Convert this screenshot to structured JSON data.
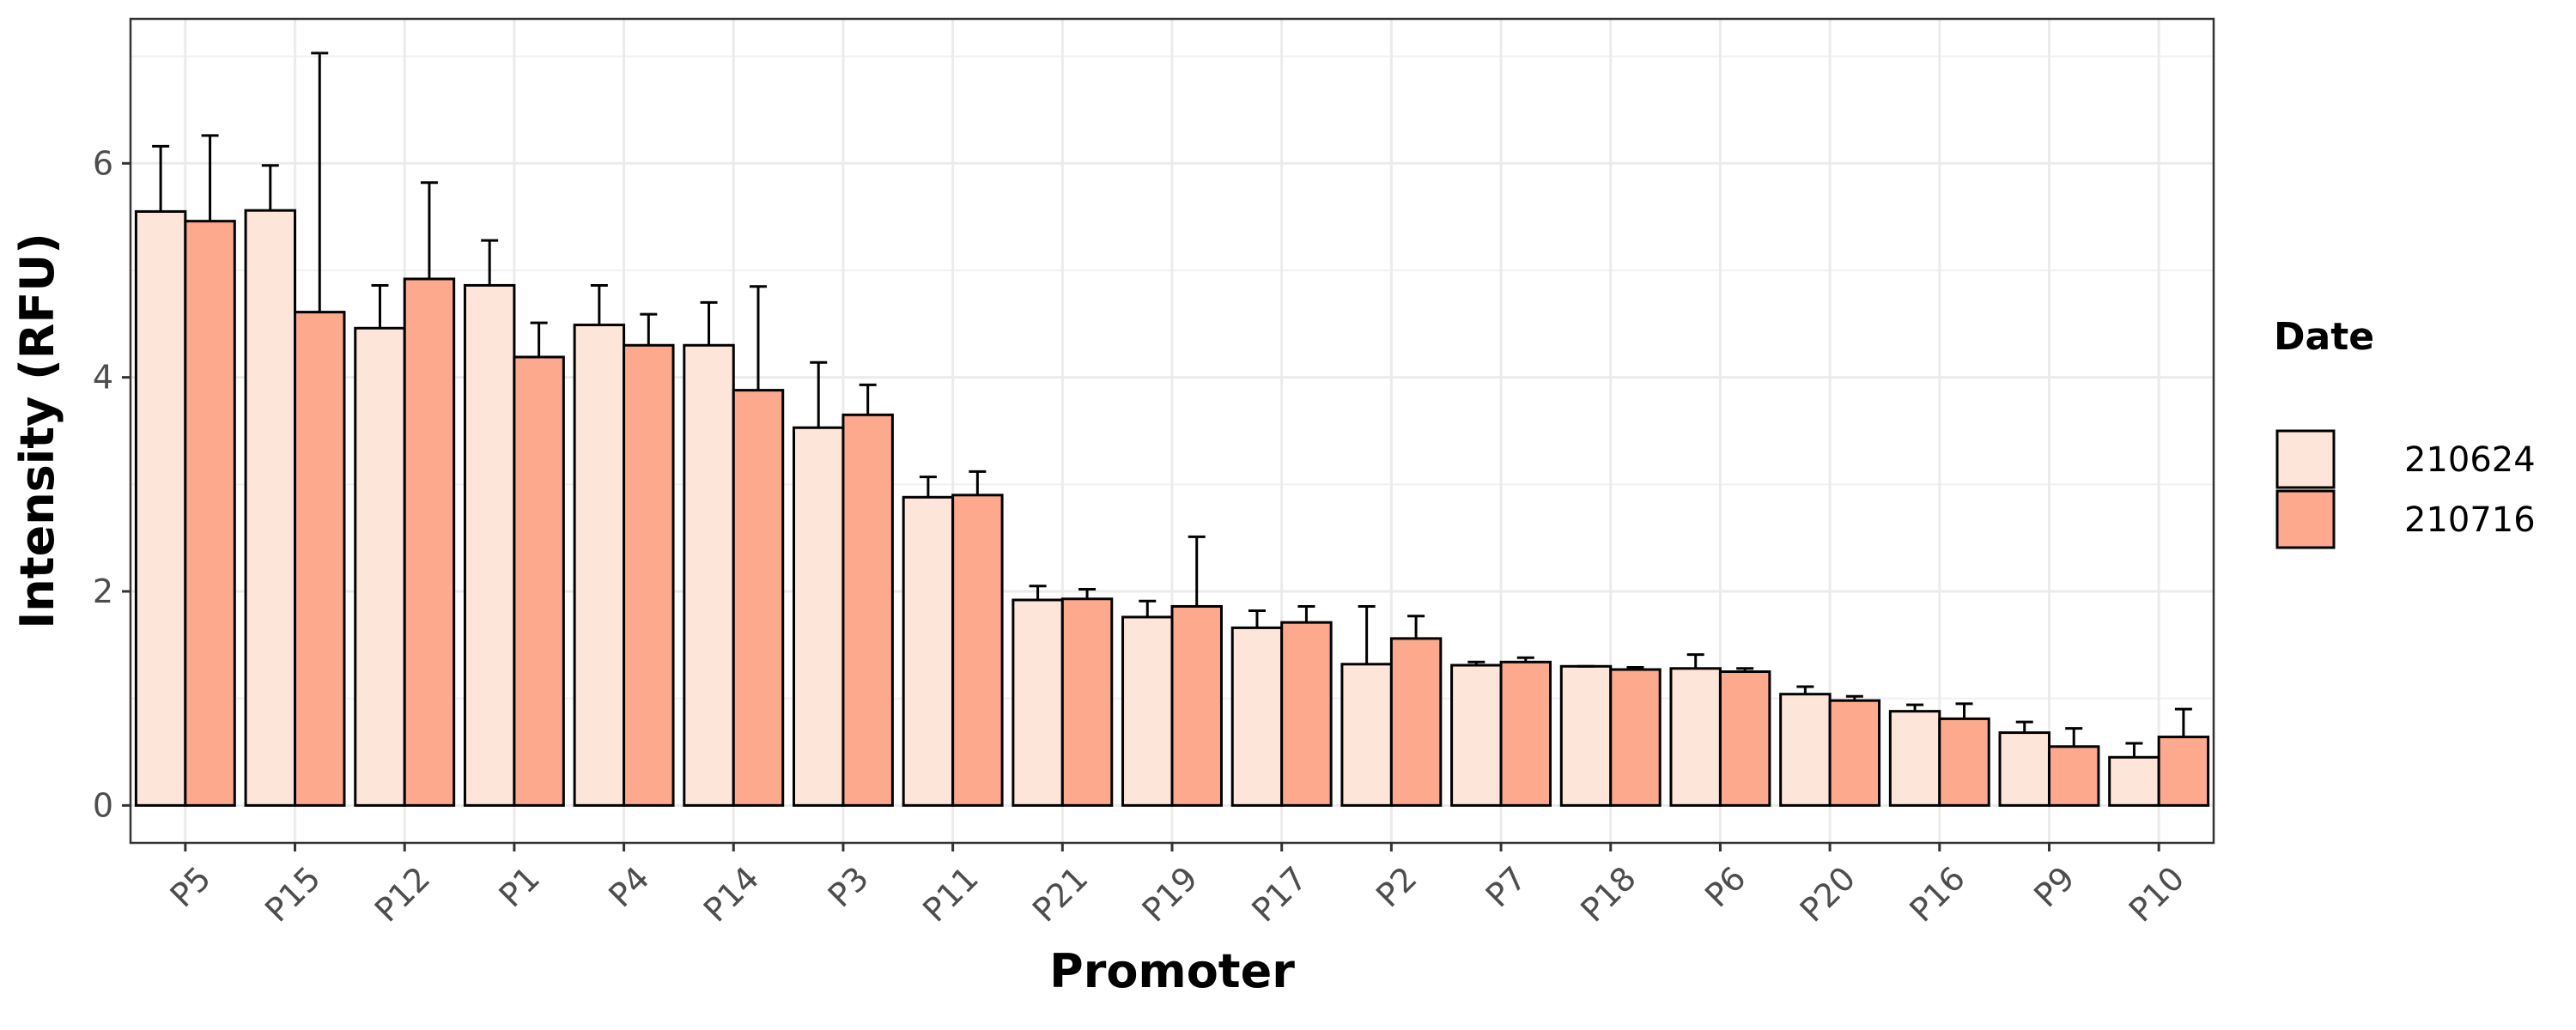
{
  "chart_data": {
    "type": "bar",
    "xlabel": "Promoter",
    "ylabel": "Intensity (RFU)",
    "ylim": [
      -0.35,
      7.35
    ],
    "yticks": [
      0,
      2,
      4,
      6
    ],
    "grid": true,
    "legend": {
      "title": "Date",
      "placement": "right"
    },
    "categories": [
      "P5",
      "P15",
      "P12",
      "P1",
      "P4",
      "P14",
      "P3",
      "P11",
      "P21",
      "P19",
      "P17",
      "P2",
      "P7",
      "P18",
      "P6",
      "P20",
      "P16",
      "P9",
      "P10"
    ],
    "series": [
      {
        "name": "210624",
        "color": "#FEE5D9",
        "values": [
          5.55,
          5.56,
          4.46,
          4.86,
          4.49,
          4.3,
          3.53,
          2.88,
          1.92,
          1.76,
          1.66,
          1.32,
          1.31,
          1.3,
          1.28,
          1.04,
          0.88,
          0.68,
          0.45
        ],
        "errors": [
          0.61,
          0.42,
          0.4,
          0.42,
          0.37,
          0.4,
          0.61,
          0.19,
          0.13,
          0.15,
          0.16,
          0.54,
          0.03,
          0.0,
          0.13,
          0.07,
          0.06,
          0.1,
          0.13
        ]
      },
      {
        "name": "210716",
        "color": "#FCA98D",
        "values": [
          5.46,
          4.61,
          4.92,
          4.19,
          4.3,
          3.88,
          3.65,
          2.9,
          1.93,
          1.86,
          1.71,
          1.56,
          1.34,
          1.27,
          1.25,
          0.98,
          0.81,
          0.55,
          0.64
        ],
        "errors": [
          0.8,
          2.42,
          0.9,
          0.32,
          0.29,
          0.97,
          0.28,
          0.22,
          0.09,
          0.65,
          0.15,
          0.21,
          0.04,
          0.02,
          0.03,
          0.04,
          0.14,
          0.17,
          0.26
        ]
      }
    ]
  }
}
